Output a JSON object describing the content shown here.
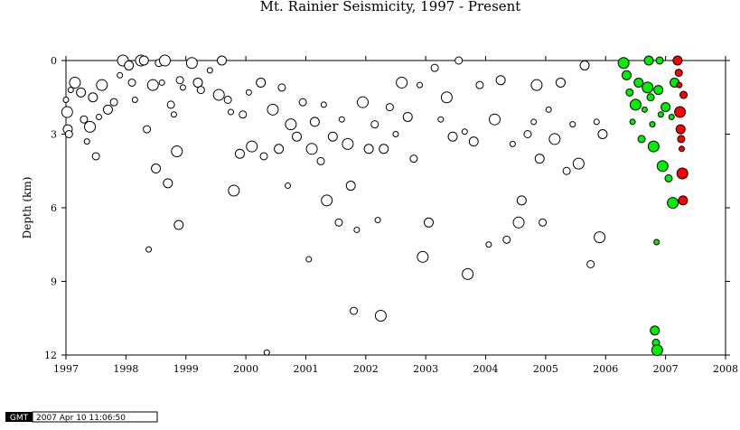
{
  "chart_data": {
    "type": "scatter",
    "title": "Mt. Rainier Seismicity, 1997 - Present",
    "ylabel": "Depth (km)",
    "xlabel": "",
    "xlim": [
      1997,
      2008
    ],
    "ylim": [
      12,
      0
    ],
    "y_inverted": true,
    "x_ticks": [
      "1997",
      "1998",
      "1999",
      "2000",
      "2001",
      "2002",
      "2003",
      "2004",
      "2005",
      "2006",
      "2007",
      "2008"
    ],
    "y_ticks": [
      "0",
      "3",
      "6",
      "9",
      "12"
    ],
    "grid": false,
    "series": [
      {
        "color": "#ffffff",
        "stroke": "#000000",
        "points": [
          [
            1997.0,
            1.6
          ],
          [
            1997.02,
            2.1
          ],
          [
            1997.03,
            2.8
          ],
          [
            1997.05,
            3.0
          ],
          [
            1997.08,
            1.2
          ],
          [
            1997.15,
            0.9
          ],
          [
            1997.25,
            1.3
          ],
          [
            1997.3,
            2.4
          ],
          [
            1997.35,
            3.3
          ],
          [
            1997.4,
            2.7
          ],
          [
            1997.45,
            1.5
          ],
          [
            1997.5,
            3.9
          ],
          [
            1997.55,
            2.3
          ],
          [
            1997.6,
            1.0
          ],
          [
            1997.7,
            2.0
          ],
          [
            1997.8,
            1.7
          ],
          [
            1997.9,
            0.6
          ],
          [
            1997.95,
            0.0
          ],
          [
            1998.05,
            0.2
          ],
          [
            1998.1,
            0.9
          ],
          [
            1998.15,
            1.6
          ],
          [
            1998.25,
            0.0
          ],
          [
            1998.3,
            0.0
          ],
          [
            1998.35,
            2.8
          ],
          [
            1998.38,
            7.7
          ],
          [
            1998.45,
            1.0
          ],
          [
            1998.5,
            4.4
          ],
          [
            1998.55,
            0.1
          ],
          [
            1998.6,
            0.9
          ],
          [
            1998.65,
            0.0
          ],
          [
            1998.7,
            5.0
          ],
          [
            1998.75,
            1.8
          ],
          [
            1998.8,
            2.2
          ],
          [
            1998.85,
            3.7
          ],
          [
            1998.88,
            6.7
          ],
          [
            1998.9,
            0.8
          ],
          [
            1998.95,
            1.1
          ],
          [
            1999.1,
            0.1
          ],
          [
            1999.2,
            0.9
          ],
          [
            1999.25,
            1.2
          ],
          [
            1999.4,
            0.4
          ],
          [
            1999.55,
            1.4
          ],
          [
            1999.6,
            0.0
          ],
          [
            1999.7,
            1.6
          ],
          [
            1999.75,
            2.1
          ],
          [
            1999.8,
            5.3
          ],
          [
            1999.9,
            3.8
          ],
          [
            1999.95,
            2.2
          ],
          [
            2000.05,
            1.3
          ],
          [
            2000.1,
            3.5
          ],
          [
            2000.25,
            0.9
          ],
          [
            2000.3,
            3.9
          ],
          [
            2000.35,
            11.9
          ],
          [
            2000.45,
            2.0
          ],
          [
            2000.55,
            3.6
          ],
          [
            2000.6,
            1.1
          ],
          [
            2000.7,
            5.1
          ],
          [
            2000.75,
            2.6
          ],
          [
            2000.85,
            3.1
          ],
          [
            2000.95,
            1.7
          ],
          [
            2001.05,
            8.1
          ],
          [
            2001.1,
            3.6
          ],
          [
            2001.15,
            2.5
          ],
          [
            2001.25,
            4.1
          ],
          [
            2001.3,
            1.8
          ],
          [
            2001.35,
            5.7
          ],
          [
            2001.45,
            3.1
          ],
          [
            2001.55,
            6.6
          ],
          [
            2001.6,
            2.4
          ],
          [
            2001.7,
            3.4
          ],
          [
            2001.75,
            5.1
          ],
          [
            2001.8,
            10.2
          ],
          [
            2001.85,
            6.9
          ],
          [
            2001.95,
            1.7
          ],
          [
            2002.05,
            3.6
          ],
          [
            2002.15,
            2.6
          ],
          [
            2002.2,
            6.5
          ],
          [
            2002.25,
            10.4
          ],
          [
            2002.3,
            3.6
          ],
          [
            2002.4,
            1.9
          ],
          [
            2002.5,
            3.0
          ],
          [
            2002.6,
            0.9
          ],
          [
            2002.7,
            2.3
          ],
          [
            2002.8,
            4.0
          ],
          [
            2002.9,
            1.0
          ],
          [
            2002.95,
            8.0
          ],
          [
            2003.05,
            6.6
          ],
          [
            2003.15,
            0.3
          ],
          [
            2003.25,
            2.4
          ],
          [
            2003.35,
            1.5
          ],
          [
            2003.45,
            3.1
          ],
          [
            2003.55,
            0.0
          ],
          [
            2003.65,
            2.9
          ],
          [
            2003.7,
            8.7
          ],
          [
            2003.8,
            3.3
          ],
          [
            2003.9,
            1.0
          ],
          [
            2004.05,
            7.5
          ],
          [
            2004.15,
            2.4
          ],
          [
            2004.25,
            0.8
          ],
          [
            2004.35,
            7.3
          ],
          [
            2004.45,
            3.4
          ],
          [
            2004.55,
            6.6
          ],
          [
            2004.6,
            5.7
          ],
          [
            2004.7,
            3.0
          ],
          [
            2004.8,
            2.5
          ],
          [
            2004.85,
            1.0
          ],
          [
            2004.9,
            4.0
          ],
          [
            2004.95,
            6.6
          ],
          [
            2005.05,
            2.0
          ],
          [
            2005.15,
            3.2
          ],
          [
            2005.25,
            0.9
          ],
          [
            2005.35,
            4.5
          ],
          [
            2005.45,
            2.6
          ],
          [
            2005.55,
            4.2
          ],
          [
            2005.65,
            0.2
          ],
          [
            2005.75,
            8.3
          ],
          [
            2005.85,
            2.5
          ],
          [
            2005.9,
            7.2
          ],
          [
            2005.95,
            3.0
          ]
        ]
      },
      {
        "color": "#00ee00",
        "stroke": "#000000",
        "points": [
          [
            2006.3,
            0.1
          ],
          [
            2006.35,
            0.6
          ],
          [
            2006.4,
            1.3
          ],
          [
            2006.45,
            2.5
          ],
          [
            2006.5,
            1.8
          ],
          [
            2006.55,
            0.9
          ],
          [
            2006.6,
            3.2
          ],
          [
            2006.65,
            2.0
          ],
          [
            2006.7,
            1.1
          ],
          [
            2006.72,
            0.0
          ],
          [
            2006.75,
            1.5
          ],
          [
            2006.78,
            2.6
          ],
          [
            2006.8,
            3.5
          ],
          [
            2006.82,
            11.0
          ],
          [
            2006.84,
            11.5
          ],
          [
            2006.85,
            7.4
          ],
          [
            2006.86,
            11.8
          ],
          [
            2006.88,
            1.2
          ],
          [
            2006.9,
            0.0
          ],
          [
            2006.92,
            2.2
          ],
          [
            2006.95,
            4.3
          ],
          [
            2007.0,
            1.9
          ],
          [
            2007.05,
            4.8
          ],
          [
            2007.1,
            2.3
          ],
          [
            2007.12,
            5.8
          ],
          [
            2007.15,
            0.9
          ]
        ]
      },
      {
        "color": "#ff0000",
        "stroke": "#000000",
        "points": [
          [
            2007.2,
            0.0
          ],
          [
            2007.22,
            0.5
          ],
          [
            2007.23,
            1.0
          ],
          [
            2007.24,
            2.1
          ],
          [
            2007.25,
            2.8
          ],
          [
            2007.26,
            3.2
          ],
          [
            2007.27,
            3.6
          ],
          [
            2007.28,
            4.6
          ],
          [
            2007.29,
            5.7
          ],
          [
            2007.3,
            1.4
          ]
        ]
      }
    ]
  },
  "footer": {
    "gmt_logo": "GMT",
    "timestamp": "2007 Apr 10 11:06:50"
  }
}
